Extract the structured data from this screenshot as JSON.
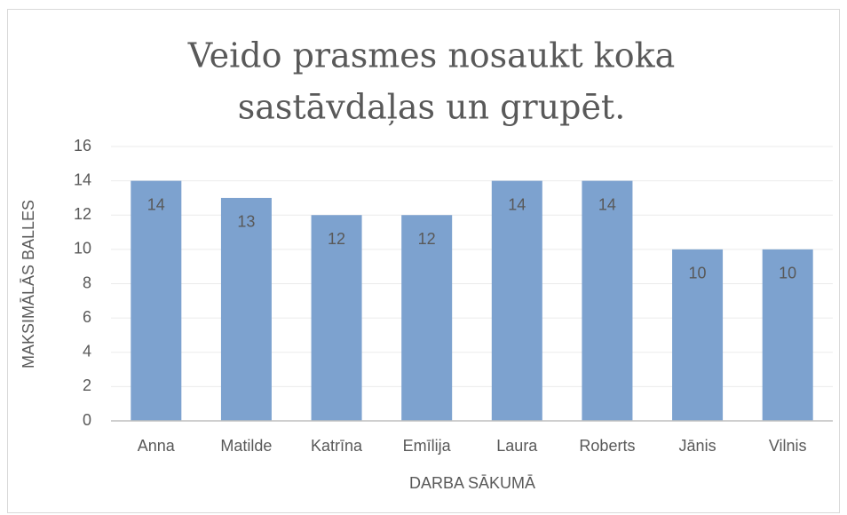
{
  "chart_data": {
    "type": "bar",
    "title": [
      "Veido prasmes nosaukt koka",
      "sastāvdaļas un grupēt."
    ],
    "x_label": "DARBA SĀKUMĀ",
    "y_label": "MAKSIMĀLĀS BALLES",
    "categories": [
      "Anna",
      "Matilde",
      "Katrīna",
      "Emīlija",
      "Laura",
      "Roberts",
      "Jānis",
      "Vilnis"
    ],
    "values": [
      14,
      13,
      12,
      12,
      14,
      14,
      10,
      10
    ],
    "color": "#7da2cf",
    "ylim": [
      0,
      16
    ],
    "yticks": [
      0,
      2,
      4,
      6,
      8,
      10,
      12,
      14,
      16
    ],
    "grid": true
  }
}
